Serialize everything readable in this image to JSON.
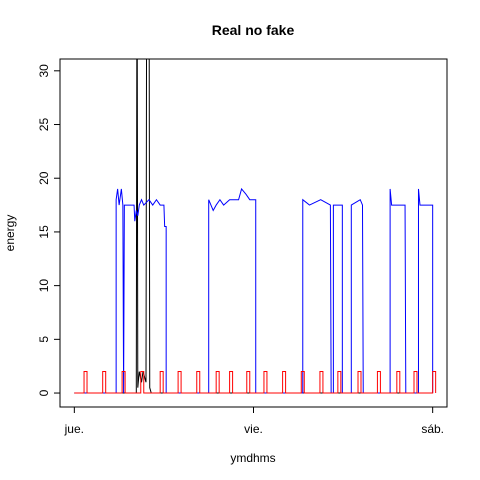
{
  "chart_data": {
    "type": "line",
    "title": "Real no fake",
    "xlabel": "ymdhms",
    "ylabel": "energy",
    "xlim": [
      -1.92,
      49.92
    ],
    "ylim": [
      -1.3,
      31.1
    ],
    "xticks": [
      {
        "value": 0,
        "label": "jue."
      },
      {
        "value": 24,
        "label": "vie."
      },
      {
        "value": 48,
        "label": "sáb."
      }
    ],
    "yticks": [
      0,
      5,
      10,
      15,
      20,
      25,
      30
    ],
    "series": [
      {
        "color": "#000000",
        "x": [
          0,
          8.3,
          8.3,
          8.4,
          8.5,
          8.7,
          9.0,
          9.2,
          9.6,
          9.7,
          10.0,
          10.1,
          10.3,
          48
        ],
        "values": [
          0,
          0,
          1,
          45,
          0.5,
          2,
          1,
          2,
          1,
          45,
          45,
          0.5,
          0,
          0
        ]
      },
      {
        "color": "#0000ff",
        "x": [
          0,
          5.6,
          5.6,
          5.8,
          6.0,
          6.3,
          6.5,
          6.6,
          6.7,
          8.0,
          8.1,
          8.3,
          8.5,
          8.7,
          9.0,
          9.3,
          10.0,
          10.5,
          11.0,
          11.5,
          12.0,
          12.1,
          12.3,
          12.3,
          18.0,
          18.0,
          18.6,
          19.0,
          19.5,
          20.0,
          20.8,
          22.0,
          22.4,
          23.0,
          23.5,
          24.3,
          24.3,
          30.6,
          30.6,
          31.5,
          33.0,
          34.3,
          34.4,
          34.7,
          34.7,
          35.9,
          35.9,
          37.1,
          37.1,
          38.3,
          38.6,
          38.7,
          42.3,
          42.3,
          42.5,
          44.3,
          44.4,
          46.1,
          46.1,
          46.3,
          48.0,
          48.0
        ],
        "values": [
          0,
          0,
          18,
          19,
          17.5,
          19,
          17.5,
          0,
          17.5,
          17.5,
          16,
          17,
          16.5,
          17.5,
          18,
          17.5,
          18,
          17.5,
          18,
          17.5,
          17.5,
          15.5,
          15.5,
          0,
          0,
          18,
          17,
          17.5,
          18,
          17.5,
          18,
          18,
          19,
          18.5,
          18,
          18,
          0,
          0,
          18,
          17.5,
          18,
          17.5,
          0,
          0,
          17.5,
          17.5,
          0,
          0,
          17.5,
          18,
          17.5,
          0,
          0,
          19,
          17.5,
          17.5,
          0,
          0,
          19,
          17.5,
          17.5,
          0
        ]
      },
      {
        "color": "#ff0000",
        "x": [
          0,
          1.3,
          1.3,
          1.7,
          1.7,
          3.8,
          3.8,
          4.2,
          4.2,
          6.4,
          6.4,
          6.8,
          6.8,
          8.9,
          8.9,
          9.3,
          9.3,
          11.5,
          11.5,
          11.9,
          11.9,
          13.9,
          13.9,
          14.3,
          14.3,
          16.4,
          16.4,
          16.8,
          16.8,
          19.0,
          19.0,
          19.4,
          19.4,
          20.8,
          20.8,
          21.2,
          21.2,
          23.1,
          23.1,
          23.5,
          23.5,
          25.4,
          25.4,
          25.8,
          25.8,
          27.9,
          27.9,
          28.3,
          28.3,
          30.4,
          30.4,
          30.8,
          30.8,
          32.9,
          32.9,
          33.3,
          33.3,
          35.3,
          35.3,
          35.7,
          35.7,
          38.0,
          38.0,
          38.4,
          38.4,
          40.6,
          40.6,
          41.0,
          41.0,
          43.2,
          43.2,
          43.6,
          43.6,
          45.5,
          45.5,
          45.9,
          45.9,
          48.0,
          48.0,
          48.4,
          48.4
        ],
        "values": [
          0,
          0,
          2,
          2,
          0,
          0,
          2,
          2,
          0,
          0,
          2,
          2,
          0,
          0,
          2,
          2,
          0,
          0,
          2,
          2,
          0,
          0,
          2,
          2,
          0,
          0,
          2,
          2,
          0,
          0,
          2,
          2,
          0,
          0,
          2,
          2,
          0,
          0,
          2,
          2,
          0,
          0,
          2,
          2,
          0,
          0,
          2,
          2,
          0,
          0,
          2,
          2,
          0,
          0,
          2,
          2,
          0,
          0,
          2,
          2,
          0,
          0,
          2,
          2,
          0,
          0,
          2,
          2,
          0,
          0,
          2,
          2,
          0,
          0,
          2,
          2,
          0,
          0,
          2,
          2,
          0
        ]
      }
    ]
  }
}
